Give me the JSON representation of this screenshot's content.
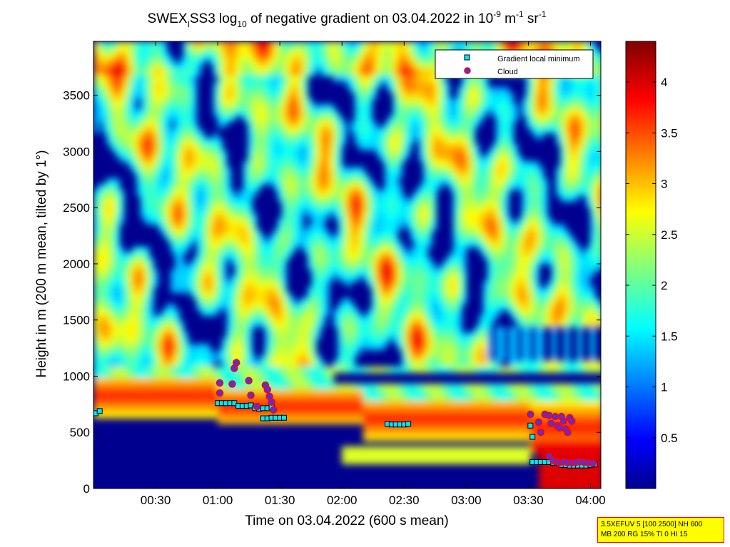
{
  "chart_data": {
    "type": "heatmap",
    "title_parts": {
      "a": "SWEX",
      "a_sub": "I",
      "b": "SS3 log",
      "b_sub": "10",
      "c": " of negative gradient on 03.04.2022 in 10",
      "c_sup": "-9",
      "d": " m",
      "d_sup": "-1",
      "e": " sr",
      "e_sup": "-1"
    },
    "xlabel": "Time on 03.04.2022 (600 s mean)",
    "ylabel": "Height in m (200 m mean, tilted by 1°)",
    "xlim_minutes": [
      0,
      245
    ],
    "ylim": [
      0,
      3980
    ],
    "xticks": [
      {
        "value": 30,
        "label": "00:30"
      },
      {
        "value": 60,
        "label": "01:00"
      },
      {
        "value": 90,
        "label": "01:30"
      },
      {
        "value": 120,
        "label": "02:00"
      },
      {
        "value": 150,
        "label": "02:30"
      },
      {
        "value": 180,
        "label": "03:00"
      },
      {
        "value": 210,
        "label": "03:30"
      },
      {
        "value": 240,
        "label": "04:00"
      }
    ],
    "yticks": [
      0,
      500,
      1000,
      1500,
      2000,
      2500,
      3000,
      3500
    ],
    "colorbar": {
      "range": [
        0,
        4.4
      ],
      "ticks": [
        0.5,
        1,
        1.5,
        2,
        2.5,
        3,
        3.5,
        4
      ],
      "colormap": "jet"
    },
    "legend": {
      "position": "top-right",
      "entries": [
        {
          "label": "Gradient local minimum",
          "marker": "square",
          "color": "#00e5ff"
        },
        {
          "label": "Cloud",
          "marker": "circle",
          "color": "#5a2fd9",
          "edge": "#ff0000"
        }
      ]
    },
    "gradient_minimum_points": [
      [
        1,
        670
      ],
      [
        3,
        690
      ],
      [
        60,
        760
      ],
      [
        62,
        760
      ],
      [
        64,
        760
      ],
      [
        66,
        760
      ],
      [
        68,
        760
      ],
      [
        70,
        735
      ],
      [
        72,
        735
      ],
      [
        74,
        735
      ],
      [
        76,
        740
      ],
      [
        78,
        715
      ],
      [
        80,
        710
      ],
      [
        82,
        715
      ],
      [
        84,
        715
      ],
      [
        86,
        725
      ],
      [
        82,
        625
      ],
      [
        84,
        625
      ],
      [
        86,
        630
      ],
      [
        88,
        630
      ],
      [
        90,
        630
      ],
      [
        92,
        630
      ],
      [
        142,
        575
      ],
      [
        144,
        570
      ],
      [
        146,
        570
      ],
      [
        148,
        570
      ],
      [
        150,
        570
      ],
      [
        152,
        575
      ],
      [
        211,
        560
      ],
      [
        212,
        460
      ],
      [
        212,
        235
      ],
      [
        214,
        235
      ],
      [
        216,
        235
      ],
      [
        218,
        235
      ],
      [
        220,
        235
      ],
      [
        222,
        230
      ],
      [
        224,
        230
      ],
      [
        226,
        210
      ],
      [
        228,
        210
      ],
      [
        230,
        205
      ],
      [
        232,
        205
      ],
      [
        234,
        205
      ],
      [
        236,
        205
      ],
      [
        238,
        205
      ],
      [
        240,
        210
      ],
      [
        242,
        215
      ]
    ],
    "cloud_points": [
      [
        61,
        940
      ],
      [
        61,
        850
      ],
      [
        68,
        1070
      ],
      [
        69,
        1120
      ],
      [
        67,
        930
      ],
      [
        75,
        960
      ],
      [
        76,
        830
      ],
      [
        79,
        730
      ],
      [
        83,
        920
      ],
      [
        84,
        880
      ],
      [
        85,
        820
      ],
      [
        86,
        770
      ],
      [
        87,
        700
      ],
      [
        211,
        660
      ],
      [
        215,
        590
      ],
      [
        216,
        500
      ],
      [
        218,
        660
      ],
      [
        220,
        650
      ],
      [
        221,
        580
      ],
      [
        223,
        640
      ],
      [
        224,
        560
      ],
      [
        225,
        540
      ],
      [
        226,
        640
      ],
      [
        227,
        600
      ],
      [
        228,
        530
      ],
      [
        229,
        500
      ],
      [
        230,
        630
      ],
      [
        231,
        600
      ],
      [
        220,
        290
      ],
      [
        222,
        250
      ],
      [
        224,
        240
      ],
      [
        225,
        230
      ],
      [
        227,
        240
      ],
      [
        229,
        230
      ],
      [
        231,
        230
      ],
      [
        233,
        235
      ],
      [
        235,
        240
      ],
      [
        237,
        235
      ],
      [
        239,
        230
      ],
      [
        241,
        225
      ]
    ],
    "intensity_features": {
      "cloud_band": [
        {
          "t0": 0,
          "t1": 60,
          "bottom": 650,
          "top": 1000
        },
        {
          "t0": 60,
          "t1": 130,
          "bottom": 560,
          "top": 900
        },
        {
          "t0": 130,
          "t1": 210,
          "bottom": 450,
          "top": 790
        }
      ],
      "note_only_for_script": ""
    }
  },
  "info_box": {
    "line1": "3.5XEFUV 5 [100 2500] NH 600",
    "line2": "MB 200 RG 15% TI 0 HI 15"
  }
}
